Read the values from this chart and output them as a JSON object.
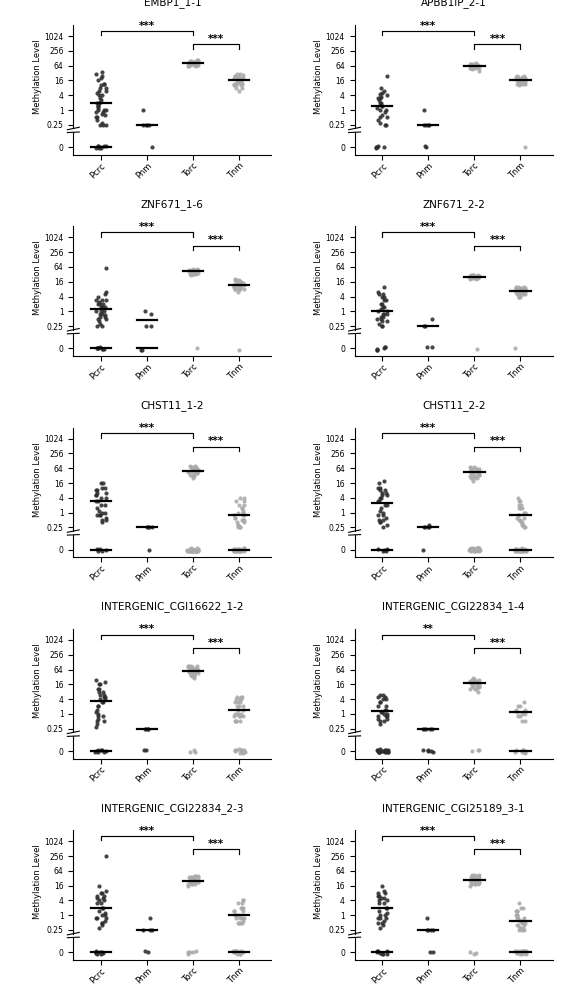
{
  "panels": [
    {
      "title": "EMBP1_1-1",
      "significance": [
        [
          "Pcrc",
          "Torc",
          "***"
        ],
        [
          "Torc",
          "Tnm",
          "***"
        ]
      ],
      "upper": {
        "Pcrc": [
          0.25,
          0.25,
          0.25,
          0.3,
          0.4,
          0.5,
          0.5,
          0.6,
          0.7,
          0.8,
          0.8,
          1.0,
          1.0,
          1.2,
          1.5,
          1.5,
          2.0,
          2.5,
          3.0,
          4.0,
          4.0,
          5.0,
          6.0,
          8.0,
          10.0,
          12.0,
          16.0,
          20.0,
          25.0,
          30.0,
          35.0,
          1.0,
          2.0,
          6.0,
          8.0,
          12.0,
          2.0
        ],
        "Pnm": [
          0.25,
          0.25,
          0.25,
          1.0,
          0.25
        ],
        "Torc": [
          64,
          70,
          75,
          80,
          85,
          90,
          90,
          95,
          100,
          100,
          105,
          110,
          70,
          75,
          80,
          80,
          85,
          90,
          90,
          95,
          85,
          80,
          75,
          70,
          65,
          60,
          60,
          65,
          70
        ],
        "Tnm": [
          8,
          10,
          12,
          14,
          16,
          18,
          20,
          22,
          24,
          26,
          28,
          30,
          10,
          12,
          14,
          16,
          18,
          20,
          22,
          24,
          10,
          12,
          14,
          8,
          6,
          16,
          18,
          20,
          22,
          12,
          14
        ]
      },
      "lower_counts": {
        "Pcrc": 8,
        "Pnm": 1,
        "Torc": 0,
        "Tnm": 0
      },
      "lower_median": {
        "Pcrc": true,
        "Pnm": false,
        "Torc": false,
        "Tnm": false
      }
    },
    {
      "title": "APBB1IP_2-1",
      "significance": [
        [
          "Pcrc",
          "Torc",
          "***"
        ],
        [
          "Torc",
          "Tnm",
          "***"
        ]
      ],
      "upper": {
        "Pcrc": [
          0.25,
          0.25,
          0.3,
          0.4,
          0.5,
          0.6,
          0.8,
          1.0,
          1.2,
          1.5,
          2.0,
          2.5,
          3.0,
          3.5,
          4.0,
          4.5,
          5.0,
          6.0,
          8.0,
          25.0,
          0.5,
          1.0,
          1.5,
          2.0,
          3.0
        ],
        "Pnm": [
          0.25,
          0.25,
          0.25,
          1.0,
          0.25
        ],
        "Torc": [
          40,
          45,
          50,
          50,
          52,
          55,
          55,
          58,
          60,
          60,
          62,
          65,
          65,
          68,
          70,
          70,
          72,
          75,
          75,
          78,
          80,
          50,
          52,
          55,
          58
        ],
        "Tnm": [
          12,
          14,
          14,
          16,
          16,
          18,
          18,
          20,
          20,
          22,
          22,
          24,
          12,
          14,
          16,
          18,
          20,
          12,
          14,
          16,
          10,
          12,
          14,
          16,
          18,
          20,
          22,
          24,
          14,
          16
        ]
      },
      "lower_counts": {
        "Pcrc": 5,
        "Pnm": 2,
        "Torc": 0,
        "Tnm": 1
      },
      "lower_median": {
        "Pcrc": false,
        "Pnm": false,
        "Torc": false,
        "Tnm": false
      }
    },
    {
      "title": "ZNF671_1-6",
      "significance": [
        [
          "Pcrc",
          "Torc",
          "***"
        ],
        [
          "Torc",
          "Tnm",
          "***"
        ]
      ],
      "upper": {
        "Pcrc": [
          0.25,
          0.25,
          0.3,
          0.4,
          0.5,
          0.5,
          0.6,
          0.7,
          0.8,
          1.0,
          1.0,
          1.5,
          1.5,
          2.0,
          2.0,
          2.5,
          3.0,
          3.0,
          4.0,
          5.0,
          6.0,
          0.6,
          0.8,
          1.0,
          1.5,
          2.0,
          3.0,
          60.0
        ],
        "Pnm": [
          0.8,
          1.0,
          0.25,
          0.25
        ],
        "Torc": [
          30,
          32,
          34,
          36,
          38,
          40,
          42,
          44,
          46,
          48,
          50,
          52,
          34,
          36,
          38,
          40,
          42,
          44,
          46,
          48,
          50,
          52,
          34,
          36,
          38,
          40,
          42,
          44,
          46
        ],
        "Tnm": [
          6,
          8,
          10,
          12,
          14,
          16,
          18,
          8,
          10,
          12,
          14,
          16,
          8,
          10,
          12,
          14,
          16,
          18,
          20,
          8,
          10,
          12,
          14,
          8,
          10,
          12,
          14,
          16,
          18,
          8,
          10,
          12,
          14,
          16
        ]
      },
      "lower_counts": {
        "Pcrc": 8,
        "Pnm": 2,
        "Torc": 1,
        "Tnm": 1
      },
      "lower_median": {
        "Pcrc": true,
        "Pnm": true,
        "Torc": false,
        "Tnm": false
      }
    },
    {
      "title": "ZNF671_2-2",
      "significance": [
        [
          "Pcrc",
          "Torc",
          "***"
        ],
        [
          "Torc",
          "Tnm",
          "***"
        ]
      ],
      "upper": {
        "Pcrc": [
          0.25,
          0.25,
          0.3,
          0.4,
          0.5,
          0.6,
          0.8,
          1.0,
          1.2,
          1.5,
          2.0,
          3.0,
          4.0,
          5.0,
          6.0,
          10.0,
          0.5,
          0.8,
          1.0,
          1.5,
          2.0,
          3.0,
          4.0,
          5.0,
          0.4,
          0.6,
          0.8
        ],
        "Pnm": [
          0.5,
          0.25,
          0.25
        ],
        "Torc": [
          20,
          22,
          24,
          26,
          28,
          30,
          22,
          24,
          26,
          28,
          30,
          20,
          22,
          24,
          26,
          28,
          30,
          22,
          24,
          26,
          28,
          30,
          22,
          24,
          26,
          28,
          30
        ],
        "Tnm": [
          4,
          5,
          6,
          7,
          8,
          9,
          10,
          5,
          6,
          7,
          8,
          9,
          10,
          4,
          5,
          6,
          7,
          8,
          9,
          10,
          4,
          5,
          6,
          7,
          8,
          9,
          5,
          6,
          7,
          8,
          9,
          4,
          5,
          6
        ]
      },
      "lower_counts": {
        "Pcrc": 6,
        "Pnm": 2,
        "Torc": 1,
        "Tnm": 1
      },
      "lower_median": {
        "Pcrc": false,
        "Pnm": false,
        "Torc": false,
        "Tnm": false
      }
    },
    {
      "title": "CHST11_1-2",
      "significance": [
        [
          "Pcrc",
          "Torc",
          "***"
        ],
        [
          "Torc",
          "Tnm",
          "***"
        ]
      ],
      "upper": {
        "Pcrc": [
          0.5,
          0.8,
          1.0,
          1.5,
          2.0,
          3.0,
          4.0,
          5.0,
          6.0,
          8.0,
          10.0,
          16.0,
          0.4,
          0.6,
          0.8,
          1.2,
          2.0,
          3.0,
          4.0,
          5.0,
          6.0,
          8.0,
          10.0,
          16.0,
          0.5,
          0.8,
          1.0
        ],
        "Pnm": [
          0.25,
          0.25,
          0.25,
          0.25
        ],
        "Torc": [
          25,
          30,
          35,
          40,
          45,
          50,
          55,
          60,
          65,
          70,
          75,
          80,
          30,
          35,
          40,
          45,
          50,
          55,
          60,
          65,
          70,
          75,
          80,
          35,
          40,
          45,
          50,
          55
        ],
        "Tnm": [
          0.25,
          0.3,
          0.4,
          0.5,
          0.6,
          0.8,
          1.0,
          1.5,
          2.0,
          3.0,
          4.0,
          0.3,
          0.5,
          0.8,
          1.2,
          2.0,
          0.25,
          0.4,
          0.6,
          1.0,
          1.5,
          3.0,
          4.0,
          0.25,
          0.5,
          0.8,
          1.0
        ]
      },
      "lower_counts": {
        "Pcrc": 5,
        "Pnm": 1,
        "Torc": 30,
        "Tnm": 30
      },
      "lower_median": {
        "Pcrc": true,
        "Pnm": false,
        "Torc": false,
        "Tnm": true
      }
    },
    {
      "title": "CHST11_2-2",
      "significance": [
        [
          "Pcrc",
          "Torc",
          "***"
        ],
        [
          "Torc",
          "Tnm",
          "***"
        ]
      ],
      "upper": {
        "Pcrc": [
          0.4,
          0.5,
          0.6,
          0.8,
          1.0,
          1.5,
          2.0,
          3.0,
          4.0,
          5.0,
          6.0,
          8.0,
          10.0,
          16.0,
          20.0,
          0.3,
          0.5,
          0.8,
          1.2,
          2.0,
          3.0,
          4.0,
          5.0,
          6.0,
          8.0,
          10.0,
          0.25,
          0.4
        ],
        "Pnm": [
          0.3,
          0.25,
          0.25,
          0.25,
          0.25
        ],
        "Torc": [
          20,
          25,
          30,
          35,
          40,
          45,
          50,
          55,
          60,
          65,
          70,
          25,
          30,
          35,
          40,
          45,
          50,
          55,
          60,
          65,
          70,
          25,
          30,
          35,
          40,
          45,
          50,
          55,
          60
        ],
        "Tnm": [
          0.25,
          0.3,
          0.4,
          0.5,
          0.6,
          0.8,
          1.0,
          1.5,
          2.0,
          3.0,
          4.0,
          0.3,
          0.5,
          0.8,
          1.0,
          1.5,
          2.0,
          0.25,
          0.4,
          0.6,
          1.0,
          1.5,
          3.0
        ]
      },
      "lower_counts": {
        "Pcrc": 5,
        "Pnm": 1,
        "Torc": 30,
        "Tnm": 28
      },
      "lower_median": {
        "Pcrc": true,
        "Pnm": false,
        "Torc": false,
        "Tnm": true
      }
    },
    {
      "title": "INTERGENIC_CGI16622_1-2",
      "significance": [
        [
          "Pcrc",
          "Torc",
          "***"
        ],
        [
          "Torc",
          "Tnm",
          "***"
        ]
      ],
      "upper": {
        "Pcrc": [
          0.3,
          0.4,
          0.5,
          0.6,
          0.8,
          1.0,
          1.5,
          2.0,
          3.0,
          4.0,
          5.0,
          6.0,
          8.0,
          10.0,
          16.0,
          20.0,
          25.0,
          0.5,
          0.8,
          1.2,
          2.0,
          3.0,
          4.0,
          5.0,
          6.0,
          8.0,
          10.0,
          16.0
        ],
        "Pnm": [
          0.25,
          0.25,
          0.25,
          0.25
        ],
        "Torc": [
          30,
          35,
          40,
          45,
          50,
          55,
          60,
          65,
          70,
          75,
          80,
          85,
          90,
          35,
          40,
          45,
          50,
          55,
          60,
          65,
          70,
          75,
          80,
          85,
          90,
          35,
          40,
          45,
          50,
          55
        ],
        "Tnm": [
          0.5,
          0.8,
          1.0,
          1.5,
          2.0,
          3.0,
          4.0,
          5.0,
          0.5,
          0.8,
          1.0,
          1.5,
          2.0,
          3.0,
          4.0,
          5.0,
          0.5,
          0.8,
          1.0,
          1.5,
          2.0,
          3.0,
          4.0,
          5.0,
          0.5,
          0.8,
          1.0
        ]
      },
      "lower_counts": {
        "Pcrc": 8,
        "Pnm": 2,
        "Torc": 3,
        "Tnm": 12
      },
      "lower_median": {
        "Pcrc": true,
        "Pnm": false,
        "Torc": false,
        "Tnm": false
      }
    },
    {
      "title": "INTERGENIC_CGI22834_1-4",
      "significance": [
        [
          "Pcrc",
          "Torc",
          "**"
        ],
        [
          "Torc",
          "Tnm",
          "***"
        ]
      ],
      "upper": {
        "Pcrc": [
          0.5,
          0.6,
          0.8,
          1.0,
          1.2,
          1.5,
          2.0,
          3.0,
          4.0,
          5.0,
          6.0,
          0.4,
          0.6,
          0.8,
          1.0,
          1.2,
          1.5,
          2.0,
          3.0,
          4.0,
          5.0,
          6.0,
          0.5,
          0.8
        ],
        "Pnm": [
          0.25,
          0.25,
          0.25,
          0.25,
          0.25
        ],
        "Torc": [
          8,
          10,
          12,
          14,
          16,
          18,
          20,
          22,
          24,
          10,
          12,
          14,
          16,
          18,
          20,
          22,
          24,
          10,
          12,
          14,
          16,
          18,
          20,
          22,
          24,
          26,
          28
        ],
        "Tnm": [
          0.5,
          0.8,
          1.0,
          1.2,
          1.5,
          2.0,
          3.0,
          0.5,
          0.8,
          1.0,
          1.2,
          1.5,
          2.0
        ]
      },
      "lower_counts": {
        "Pcrc": 22,
        "Pnm": 5,
        "Torc": 3,
        "Tnm": 10
      },
      "lower_median": {
        "Pcrc": false,
        "Pnm": false,
        "Torc": false,
        "Tnm": true
      }
    },
    {
      "title": "INTERGENIC_CGI22834_2-3",
      "significance": [
        [
          "Pcrc",
          "Torc",
          "***"
        ],
        [
          "Torc",
          "Tnm",
          "***"
        ]
      ],
      "upper": {
        "Pcrc": [
          0.5,
          0.8,
          1.0,
          1.5,
          2.0,
          3.0,
          4.0,
          5.0,
          6.0,
          8.0,
          10.0,
          16.0,
          0.4,
          0.6,
          0.8,
          1.2,
          2.0,
          3.0,
          4.0,
          5.0,
          6.0,
          8.0,
          0.3,
          0.5,
          0.8,
          1.0,
          256.0
        ],
        "Pnm": [
          0.25,
          0.8,
          0.25,
          0.25
        ],
        "Torc": [
          16,
          18,
          20,
          22,
          25,
          28,
          32,
          36,
          40,
          18,
          20,
          22,
          25,
          28,
          32,
          36,
          40,
          18,
          20,
          22,
          25,
          28,
          32,
          36,
          40,
          18,
          20,
          22
        ],
        "Tnm": [
          0.5,
          0.6,
          0.8,
          1.0,
          1.5,
          2.0,
          3.0,
          4.0,
          0.5,
          0.8,
          1.0,
          1.5,
          2.0,
          3.0,
          4.0,
          0.5,
          0.8,
          1.0,
          1.5,
          2.0,
          0.5,
          0.8,
          1.0
        ]
      },
      "lower_counts": {
        "Pcrc": 8,
        "Pnm": 2,
        "Torc": 5,
        "Tnm": 18
      },
      "lower_median": {
        "Pcrc": true,
        "Pnm": false,
        "Torc": false,
        "Tnm": true
      }
    },
    {
      "title": "INTERGENIC_CGI25189_3-1",
      "significance": [
        [
          "Pcrc",
          "Torc",
          "***"
        ],
        [
          "Torc",
          "Tnm",
          "***"
        ]
      ],
      "upper": {
        "Pcrc": [
          0.5,
          0.8,
          1.0,
          1.5,
          2.0,
          3.0,
          4.0,
          5.0,
          6.0,
          8.0,
          10.0,
          16.0,
          0.4,
          0.6,
          0.8,
          1.2,
          2.0,
          3.0,
          4.0,
          5.0,
          6.0,
          8.0,
          0.3,
          0.5,
          0.8,
          1.0
        ],
        "Pnm": [
          0.25,
          0.25,
          0.8,
          0.25,
          0.25
        ],
        "Torc": [
          16,
          18,
          20,
          22,
          25,
          28,
          32,
          36,
          40,
          44,
          18,
          20,
          22,
          25,
          28,
          32,
          36,
          40,
          44,
          18,
          20,
          22,
          25,
          28,
          32,
          36,
          40,
          44,
          18,
          20,
          22,
          25,
          28,
          32,
          36,
          40
        ],
        "Tnm": [
          0.25,
          0.3,
          0.4,
          0.5,
          0.6,
          0.8,
          1.0,
          1.5,
          2.0,
          3.0,
          0.25,
          0.3,
          0.4,
          0.5,
          0.6,
          0.8,
          1.0,
          1.5,
          2.0,
          0.25,
          0.3,
          0.4,
          0.5,
          0.6,
          0.8,
          1.0,
          1.5
        ]
      },
      "lower_counts": {
        "Pcrc": 8,
        "Pnm": 2,
        "Torc": 3,
        "Tnm": 22
      },
      "lower_median": {
        "Pcrc": true,
        "Pnm": false,
        "Torc": false,
        "Tnm": true
      }
    }
  ],
  "dark_color": "#2d2d2d",
  "light_color": "#aaaaaa",
  "background": "#ffffff",
  "ylabel": "Methylation Level",
  "groups": [
    "Pcrc",
    "Pnm",
    "Torc",
    "Tnm"
  ],
  "group_is_dark": [
    true,
    true,
    false,
    false
  ]
}
